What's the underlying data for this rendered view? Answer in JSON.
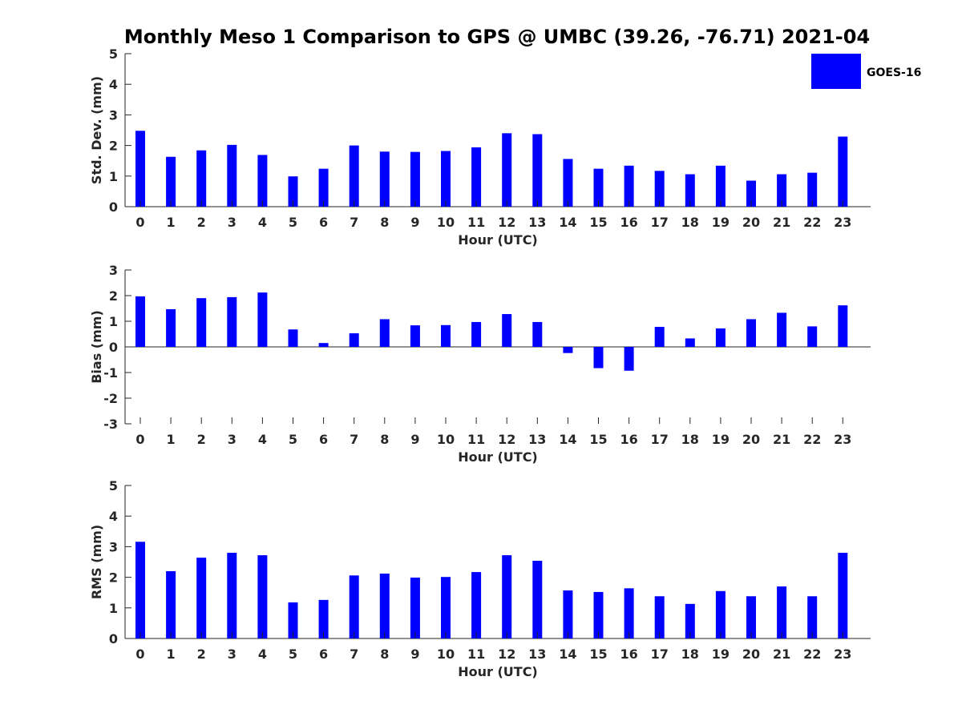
{
  "title": "Monthly Meso 1 Comparison to GPS @ UMBC (39.26, -76.71) 2021-04",
  "legend": {
    "label": "GOES-16",
    "color": "#0000ff",
    "placement": "top-right"
  },
  "chart_data": [
    {
      "type": "bar",
      "xlabel": "Hour (UTC)",
      "ylabel": "Std. Dev. (mm)",
      "ylim": [
        0,
        5
      ],
      "yticks": [
        0,
        1,
        2,
        3,
        4,
        5
      ],
      "categories": [
        "0",
        "1",
        "2",
        "3",
        "4",
        "5",
        "6",
        "7",
        "8",
        "9",
        "10",
        "11",
        "12",
        "13",
        "14",
        "15",
        "16",
        "17",
        "18",
        "19",
        "20",
        "21",
        "22",
        "23"
      ],
      "series": [
        {
          "name": "GOES-16",
          "color": "#0000ff",
          "values": [
            2.48,
            1.63,
            1.84,
            2.02,
            1.69,
            0.99,
            1.24,
            2.0,
            1.8,
            1.79,
            1.82,
            1.94,
            2.4,
            2.37,
            1.56,
            1.24,
            1.34,
            1.17,
            1.06,
            1.34,
            0.85,
            1.06,
            1.11,
            2.29
          ]
        }
      ]
    },
    {
      "type": "bar",
      "xlabel": "Hour (UTC)",
      "ylabel": "Bias (mm)",
      "ylim": [
        -3,
        3
      ],
      "yticks": [
        -3,
        -2,
        -1,
        0,
        1,
        2,
        3
      ],
      "categories": [
        "0",
        "1",
        "2",
        "3",
        "4",
        "5",
        "6",
        "7",
        "8",
        "9",
        "10",
        "11",
        "12",
        "13",
        "14",
        "15",
        "16",
        "17",
        "18",
        "19",
        "20",
        "21",
        "22",
        "23"
      ],
      "series": [
        {
          "name": "GOES-16",
          "color": "#0000ff",
          "values": [
            1.97,
            1.47,
            1.9,
            1.94,
            2.12,
            0.68,
            0.15,
            0.53,
            1.08,
            0.84,
            0.85,
            0.97,
            1.28,
            0.97,
            -0.24,
            -0.83,
            -0.93,
            0.78,
            0.33,
            0.72,
            1.08,
            1.33,
            0.8,
            1.62
          ]
        }
      ]
    },
    {
      "type": "bar",
      "xlabel": "Hour (UTC)",
      "ylabel": "RMS (mm)",
      "ylim": [
        0,
        5
      ],
      "yticks": [
        0,
        1,
        2,
        3,
        4,
        5
      ],
      "categories": [
        "0",
        "1",
        "2",
        "3",
        "4",
        "5",
        "6",
        "7",
        "8",
        "9",
        "10",
        "11",
        "12",
        "13",
        "14",
        "15",
        "16",
        "17",
        "18",
        "19",
        "20",
        "21",
        "22",
        "23"
      ],
      "series": [
        {
          "name": "GOES-16",
          "color": "#0000ff",
          "values": [
            3.16,
            2.2,
            2.64,
            2.8,
            2.72,
            1.18,
            1.26,
            2.06,
            2.12,
            1.99,
            2.01,
            2.17,
            2.72,
            2.54,
            1.57,
            1.52,
            1.64,
            1.38,
            1.13,
            1.55,
            1.38,
            1.7,
            1.38,
            2.8
          ]
        }
      ]
    }
  ]
}
